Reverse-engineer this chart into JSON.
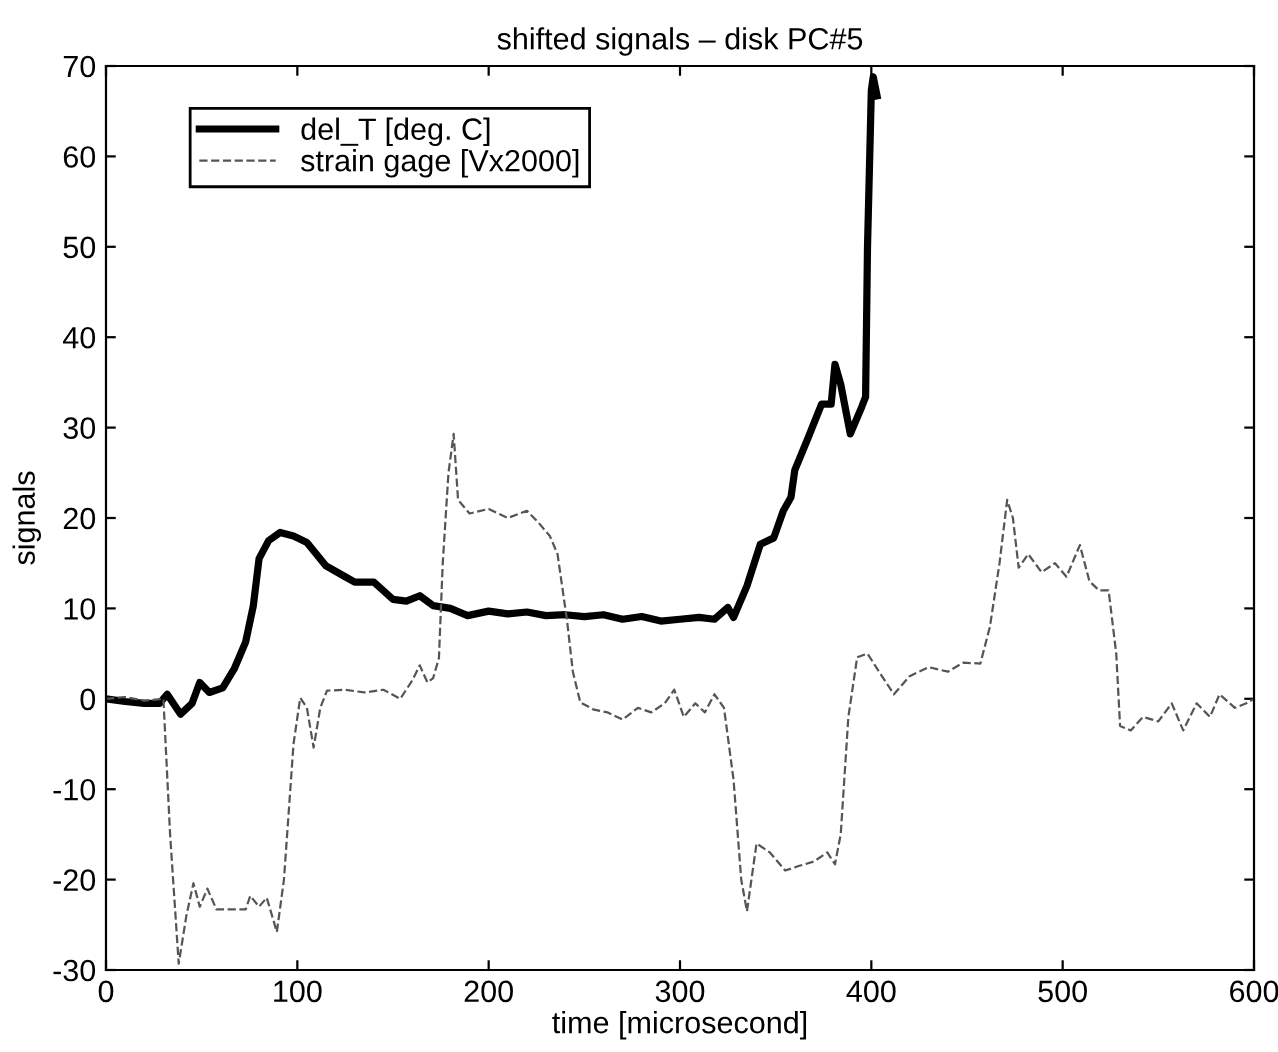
{
  "chart_data": {
    "type": "line",
    "title": "shifted signals – disk PC#5",
    "xlabel": "time [microsecond]",
    "ylabel": "signals",
    "xlim": [
      0,
      600
    ],
    "ylim": [
      -30,
      70
    ],
    "xticks": [
      0,
      100,
      200,
      300,
      400,
      500,
      600
    ],
    "yticks": [
      -30,
      -20,
      -10,
      0,
      10,
      20,
      30,
      40,
      50,
      60,
      70
    ],
    "grid": false,
    "legend": "top left",
    "marker": "none",
    "series": [
      {
        "name": "del_T [deg. C]",
        "color": "#000000",
        "line_style": "solid",
        "x": [
          0,
          10,
          20,
          28,
          32,
          39,
          45,
          49,
          54,
          61,
          67,
          73,
          77,
          80,
          85,
          91,
          98,
          105,
          115,
          125,
          130,
          140,
          150,
          157,
          164,
          171,
          180,
          189,
          200,
          210,
          220,
          230,
          240,
          250,
          260,
          270,
          280,
          290,
          300,
          310,
          318,
          325,
          328,
          335,
          342,
          349,
          354,
          358,
          360,
          367,
          374,
          379,
          381,
          384,
          389,
          395,
          397,
          398,
          400,
          401,
          403
        ],
        "values": [
          0,
          -0.3,
          -0.5,
          -0.5,
          0.5,
          -1.7,
          -0.5,
          1.8,
          0.7,
          1.2,
          3.3,
          6.3,
          10.3,
          15.5,
          17.5,
          18.4,
          18,
          17.3,
          14.7,
          13.5,
          12.9,
          12.9,
          11,
          10.8,
          11.4,
          10.3,
          10,
          9.2,
          9.7,
          9.4,
          9.6,
          9.2,
          9.3,
          9.1,
          9.3,
          8.8,
          9.1,
          8.6,
          8.8,
          9,
          8.8,
          10.1,
          9,
          12.5,
          17.1,
          17.8,
          20.8,
          22.3,
          25.3,
          28.9,
          32.6,
          32.6,
          37,
          34.8,
          29.3,
          32.3,
          33.4,
          50,
          67.3,
          68.8,
          66.7
        ]
      },
      {
        "name": "strain gage [Vx2000]",
        "color": "#555555",
        "line_style": "dashed",
        "x": [
          0,
          10,
          20,
          30,
          33.5,
          38,
          42,
          45.7,
          49,
          53,
          57.7,
          65,
          73,
          75.4,
          80,
          84,
          89.3,
          93,
          98,
          101.5,
          105,
          108.5,
          112,
          115.5,
          125,
          135,
          145,
          153.8,
          160,
          164,
          168,
          171,
          174,
          176,
          179,
          181.7,
          184,
          190,
          200,
          210,
          220,
          226,
          232,
          236,
          241,
          244,
          247.9,
          255,
          262,
          270,
          278,
          285,
          292,
          297,
          302,
          308,
          313,
          318,
          323,
          328,
          332,
          335,
          340,
          347,
          355,
          362,
          370,
          377,
          381,
          384,
          388,
          392.6,
          398,
          404,
          411.8,
          420,
          430,
          440,
          448,
          457,
          462,
          467,
          471,
          474,
          477,
          482,
          489,
          496,
          502,
          509,
          514,
          519,
          524,
          528,
          530,
          535.6,
          542,
          550,
          557,
          563,
          570,
          577,
          582,
          590,
          596,
          600
        ],
        "values": [
          0,
          0.2,
          -0.2,
          0,
          -15,
          -29.3,
          -24,
          -20.4,
          -23,
          -21,
          -23.3,
          -23.3,
          -23.3,
          -21.8,
          -23,
          -22,
          -25.8,
          -20,
          -5,
          0.1,
          -1,
          -5.4,
          -1,
          0.9,
          1,
          0.7,
          1,
          0,
          2,
          3.7,
          1.8,
          2.3,
          4.5,
          15,
          25,
          29.3,
          22,
          20.5,
          21,
          20,
          20.8,
          19.5,
          18,
          16,
          8.6,
          3,
          -0.4,
          -1.2,
          -1.5,
          -2.3,
          -1,
          -1.5,
          -0.5,
          1,
          -2,
          -0.5,
          -1.5,
          0.5,
          -1,
          -9,
          -20,
          -23.5,
          -16,
          -17,
          -19,
          -18.5,
          -18,
          -17,
          -18.3,
          -15,
          -2,
          4.6,
          5,
          3,
          0.5,
          2.5,
          3.5,
          3,
          4,
          3.9,
          8,
          15,
          22,
          20,
          14.5,
          16,
          14,
          15,
          13.5,
          17,
          13,
          12,
          12,
          5,
          -3,
          -3.5,
          -2,
          -2.5,
          -0.5,
          -3.5,
          -0.5,
          -2,
          0.5,
          -1,
          -0.5,
          0
        ]
      }
    ]
  }
}
